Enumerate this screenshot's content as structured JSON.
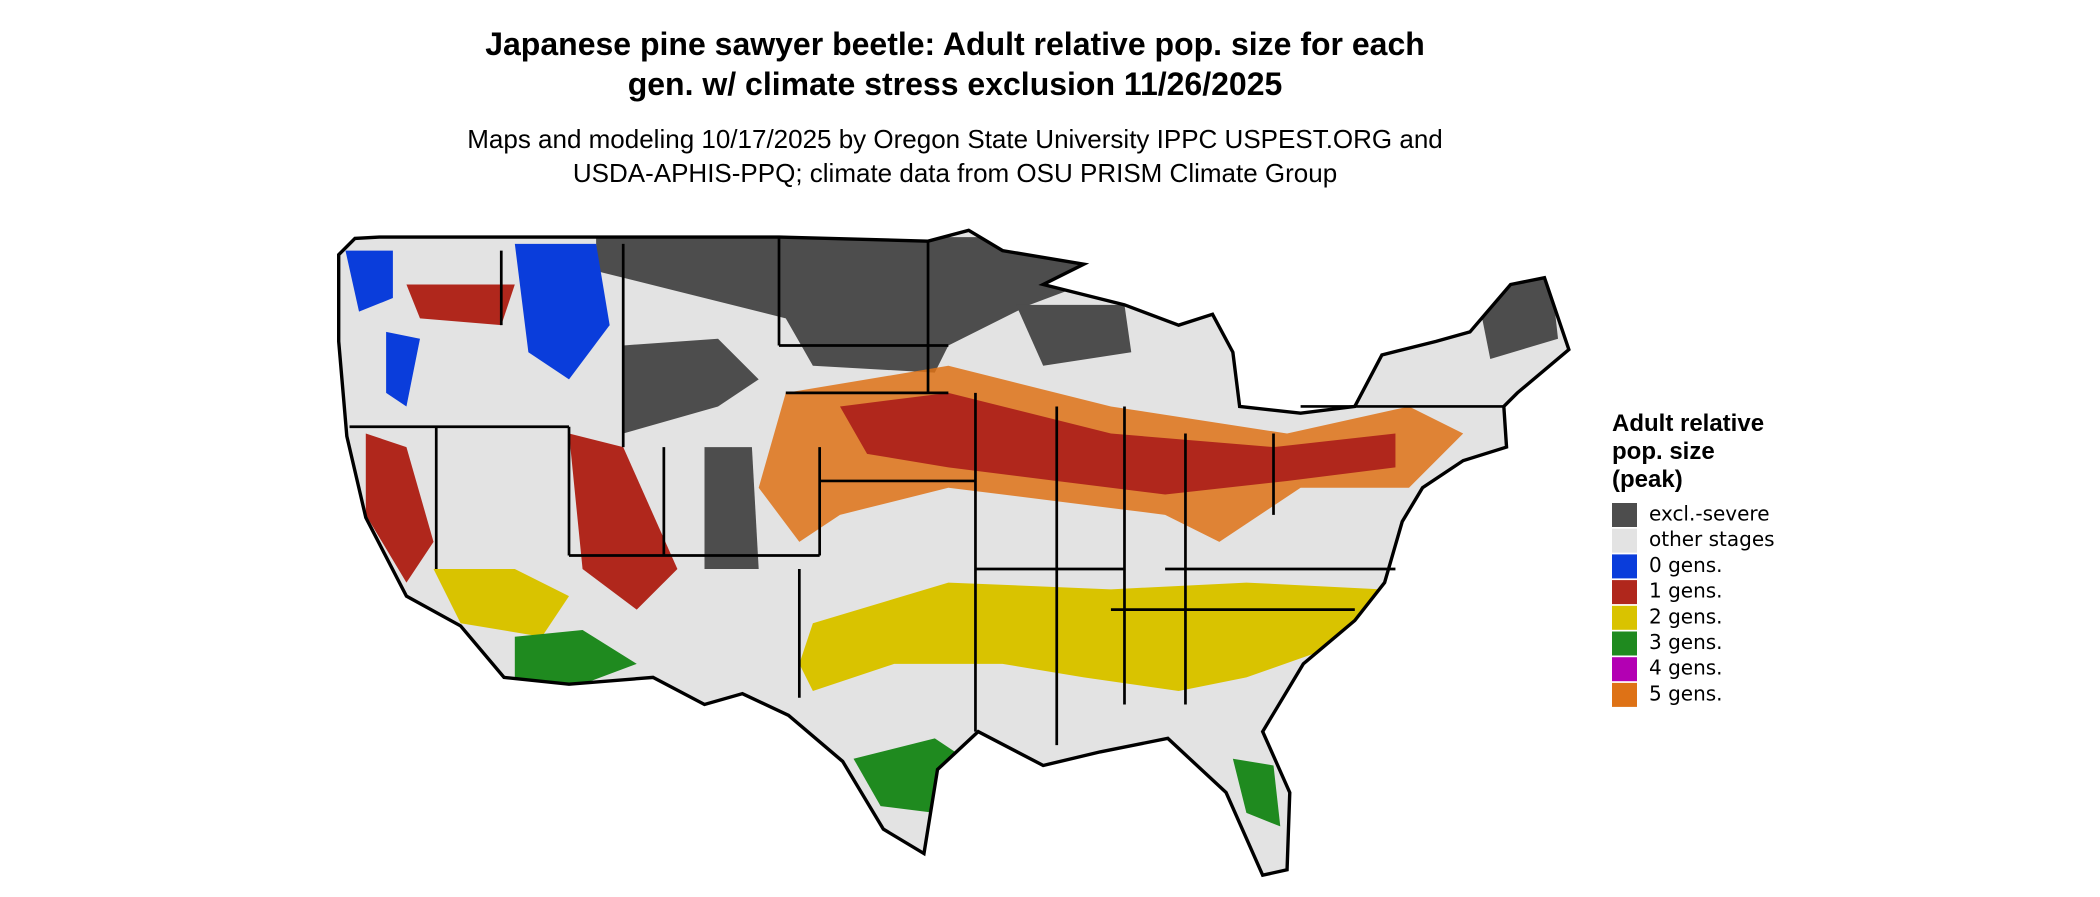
{
  "header": {
    "title_lines": [
      "Japanese pine sawyer beetle: Adult relative pop. size for each",
      "gen. w/ climate stress exclusion 11/26/2025"
    ],
    "subtitle_lines": [
      "Maps and modeling 10/17/2025 by Oregon State University IPPC USPEST.ORG and",
      "USDA-APHIS-PPQ; climate data from OSU PRISM Climate Group"
    ]
  },
  "legend": {
    "title_lines": [
      "Adult relative",
      "pop. size",
      "(peak)"
    ],
    "items": [
      {
        "label": "excl.-severe",
        "color": "#4d4d4d"
      },
      {
        "label": "other stages",
        "color": "#e3e3e3"
      },
      {
        "label": "0 gens.",
        "color": "#0a3ddb"
      },
      {
        "label": "1 gens.",
        "color": "#b0271c"
      },
      {
        "label": "2 gens.",
        "color": "#d9c300"
      },
      {
        "label": "3 gens.",
        "color": "#1f8a1f"
      },
      {
        "label": "4 gens.",
        "color": "#b300b3"
      },
      {
        "label": "5 gens.",
        "color": "#de7216"
      }
    ]
  }
}
